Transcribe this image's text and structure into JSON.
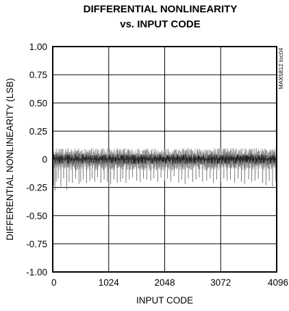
{
  "chart_data": {
    "type": "line",
    "title": [
      "DIFFERENTIAL NONLINEARITY",
      "vs. INPUT CODE"
    ],
    "xlabel": "INPUT CODE",
    "ylabel": "DIFFERENTIAL NONLINEARITY (LSB)",
    "watermark": "MAX5812 toc04",
    "xlim": [
      0,
      4096
    ],
    "ylim": [
      -1.0,
      1.0
    ],
    "x_ticks": [
      0,
      1024,
      2048,
      3072,
      4096
    ],
    "x_tick_labels": [
      "0",
      "1024",
      "2048",
      "3072",
      "4096"
    ],
    "y_ticks": [
      1.0,
      0.75,
      0.5,
      0.25,
      0,
      -0.25,
      -0.5,
      -0.75,
      -1.0
    ],
    "y_tick_labels": [
      "1.00",
      "0.75",
      "0.50",
      "0.25",
      "0",
      "-0.25",
      "-0.50",
      "-0.75",
      "-1.00"
    ],
    "grid": true,
    "series": [
      {
        "x": [
          0,
          16,
          40,
          64,
          100,
          150,
          200,
          256,
          300,
          360,
          420,
          480,
          512,
          560,
          620,
          680,
          720,
          768,
          820,
          880,
          940,
          1000,
          1024,
          1060,
          1120,
          1180,
          1240,
          1280,
          1340,
          1400,
          1460,
          1536,
          1600,
          1660,
          1720,
          1792,
          1850,
          1920,
          1980,
          2048,
          2100,
          2160,
          2220,
          2304,
          2360,
          2420,
          2480,
          2560,
          2620,
          2680,
          2740,
          2816,
          2880,
          2940,
          3000,
          3072,
          3130,
          3190,
          3250,
          3328,
          3390,
          3450,
          3510,
          3584,
          3640,
          3700,
          3760,
          3840,
          3900,
          3960,
          4020,
          4080,
          4095
        ],
        "y": [
          -0.3,
          -0.23,
          -0.28,
          -0.2,
          -0.17,
          -0.24,
          -0.17,
          -0.27,
          -0.2,
          -0.21,
          -0.17,
          -0.22,
          -0.2,
          -0.18,
          -0.21,
          -0.19,
          -0.17,
          -0.2,
          -0.16,
          -0.21,
          -0.18,
          -0.2,
          -0.25,
          -0.22,
          -0.18,
          -0.21,
          -0.2,
          -0.17,
          -0.21,
          -0.18,
          -0.16,
          -0.19,
          -0.2,
          -0.17,
          -0.18,
          -0.19,
          -0.17,
          -0.2,
          -0.16,
          -0.19,
          -0.17,
          -0.2,
          -0.15,
          -0.21,
          -0.18,
          -0.22,
          -0.17,
          -0.2,
          -0.18,
          -0.16,
          -0.2,
          -0.19,
          -0.17,
          -0.21,
          -0.18,
          -0.2,
          -0.17,
          -0.19,
          -0.18,
          -0.21,
          -0.17,
          -0.2,
          -0.22,
          -0.18,
          -0.2,
          -0.19,
          -0.17,
          -0.21,
          -0.23,
          -0.19,
          -0.24,
          -0.2,
          -0.22
        ]
      }
    ],
    "noise_band": [
      -0.1,
      0.1
    ]
  }
}
